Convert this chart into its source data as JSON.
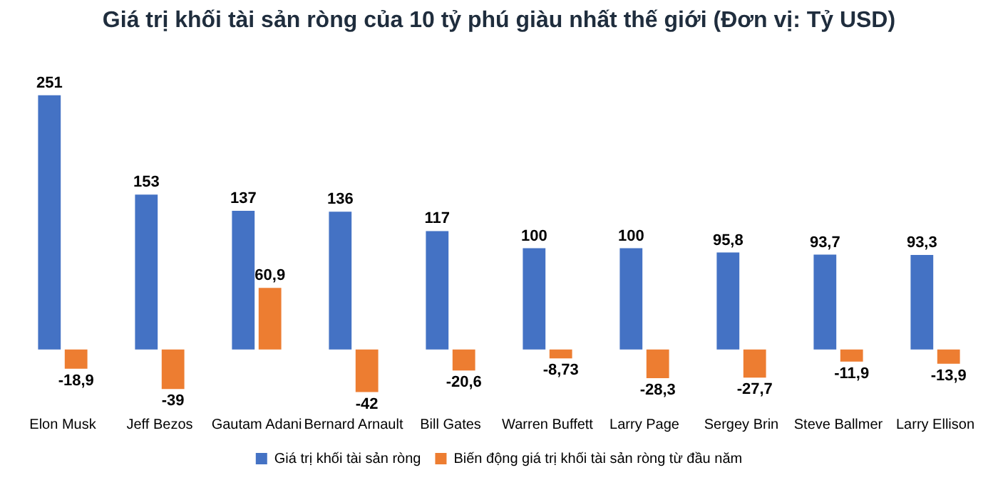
{
  "chart_data": {
    "type": "bar",
    "title": "Giá trị khối tài sản ròng của 10 tỷ phú giàu nhất thế giới (Đơn vị: Tỷ USD)",
    "categories": [
      "Elon Musk",
      "Jeff Bezos",
      "Gautam Adani",
      "Bernard Arnault",
      "Bill Gates",
      "Warren Buffett",
      "Larry Page",
      "Sergey Brin",
      "Steve Ballmer",
      "Larry Ellison"
    ],
    "tick_labels": "x",
    "series": [
      {
        "name": "Giá trị khối tài sản ròng",
        "color": "#4472c4",
        "values": [
          251,
          153,
          137,
          136,
          117,
          100,
          100,
          95.8,
          93.7,
          93.3
        ],
        "value_labels": [
          "251",
          "153",
          "137",
          "136",
          "117",
          "100",
          "100",
          "95,8",
          "93,7",
          "93,3"
        ]
      },
      {
        "name": "Biến động giá trị khối tài sản ròng từ đầu năm",
        "color": "#ed7d31",
        "values": [
          -18.9,
          -39,
          60.9,
          -42,
          -20.6,
          -8.73,
          -28.3,
          -27.7,
          -11.9,
          -13.9
        ],
        "value_labels": [
          "-18,9",
          "-39",
          "60,9",
          "-42",
          "-20,6",
          "-8,73",
          "-28,3",
          "-27,7",
          "-11,9",
          "-13,9"
        ]
      }
    ],
    "legend": "bottom"
  }
}
